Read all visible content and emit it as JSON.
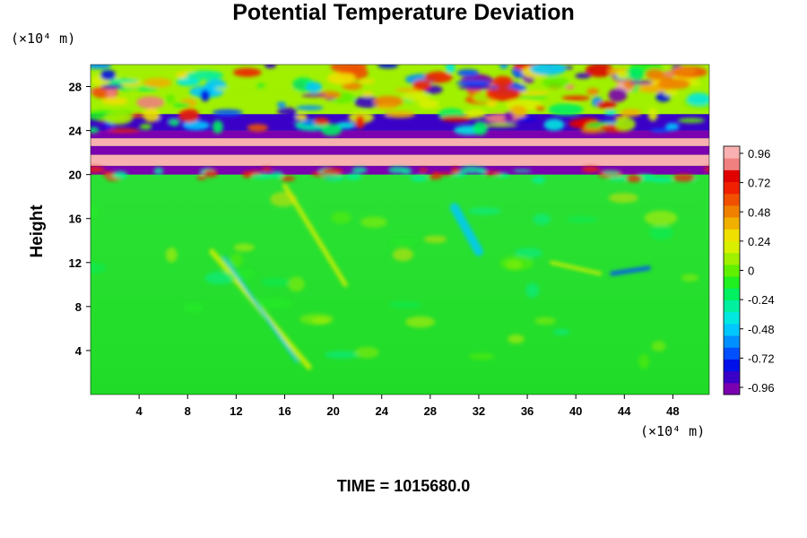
{
  "chart_data": {
    "type": "heatmap",
    "title": "Potential Temperature Deviation",
    "ylabel": "Height",
    "xlabel": "",
    "x_units": "(×10⁴ m)",
    "y_units": "(×10⁴ m)",
    "x_ticks": [
      4,
      8,
      12,
      16,
      20,
      24,
      28,
      32,
      36,
      40,
      44,
      48
    ],
    "y_ticks": [
      4,
      8,
      12,
      16,
      20,
      24,
      28
    ],
    "xlim": [
      0,
      51
    ],
    "ylim": [
      0,
      30
    ],
    "colorbar": {
      "ticks": [
        "0.96",
        "0.72",
        "0.48",
        "0.24",
        "0",
        "-0.24",
        "-0.48",
        "-0.72",
        "-0.96"
      ],
      "range": [
        -1.0,
        1.0
      ],
      "colors": [
        "#7a00b0",
        "#3a00c8",
        "#0010e8",
        "#0050ff",
        "#0090ff",
        "#00c8ff",
        "#00e8e0",
        "#00f0a0",
        "#00f060",
        "#20f020",
        "#60f000",
        "#a0f000",
        "#d8f000",
        "#f0e000",
        "#f0b000",
        "#f08000",
        "#f05000",
        "#f02000",
        "#e00000",
        "#f08080",
        "#f8b0b0"
      ]
    },
    "annotation": "TIME = 1015680.0",
    "field_summary": {
      "lower_region": "near-zero deviation (green) from 0 to ~19.5",
      "upper_region": "strong alternating positive/negative layers from ~19.5 to 30",
      "bands": [
        {
          "y_from": 20.0,
          "y_to": 20.8,
          "value": -0.96
        },
        {
          "y_from": 20.8,
          "y_to": 21.8,
          "value": 0.96
        },
        {
          "y_from": 21.8,
          "y_to": 22.6,
          "value": -0.96
        },
        {
          "y_from": 22.6,
          "y_to": 23.3,
          "value": 0.96
        },
        {
          "y_from": 23.3,
          "y_to": 24.0,
          "value": -0.96
        },
        {
          "y_from": 24.0,
          "y_to": 25.5,
          "value": -0.9
        },
        {
          "y_from": 25.5,
          "y_to": 30.0,
          "value": "mixed"
        }
      ]
    }
  }
}
